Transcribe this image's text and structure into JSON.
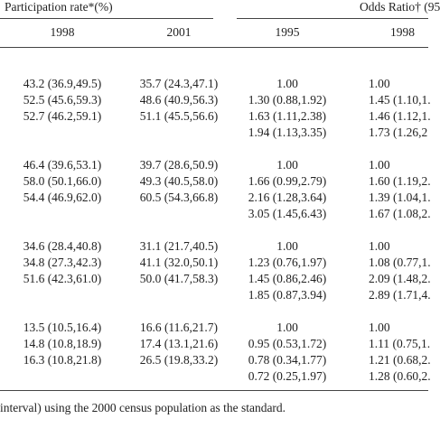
{
  "header": {
    "group_left": "Participation rate*(%)",
    "group_right": "Odds Ratio† (95",
    "columns": [
      "1998",
      "2001",
      "1995",
      "1998"
    ]
  },
  "groups": [
    {
      "columns": [
        [
          "43.2 (36.9,49.5)",
          "52.5 (45.6,59.3)",
          "52.7 (46.2,59.1)"
        ],
        [
          "35.7 (24.3,47.1)",
          "48.6 (40.9,56.3)",
          "51.1 (45.5,56.6)"
        ],
        [
          "1.00",
          "1.30 (0.88,1.92)",
          "1.63 (1.11,2.38)",
          "1.94 (1.13,3.35)"
        ],
        [
          "1.00",
          "1.45 (1.10,1.",
          "1.46 (1.12,1.",
          "1.73 (1.26,2"
        ]
      ]
    },
    {
      "columns": [
        [
          "46.4 (39.6,53.1)",
          "58.0 (50.1,66.0)",
          "54.4 (46.9,62.0)"
        ],
        [
          "39.7 (28.6,50.9)",
          "49.3 (40.5,58.0)",
          "60.5 (54.3,66.8)"
        ],
        [
          "1.00",
          "1.66 (0.99,2.79)",
          "2.16 (1.28,3.64)",
          "3.05 (1.45,6.43)"
        ],
        [
          "1.00",
          "1.60 (1.19,2.",
          "1.39 (1.04,1.",
          "1.67 (1.08,2."
        ]
      ]
    },
    {
      "columns": [
        [
          "34.6 (28.4,40.8)",
          "34.8 (27.3,42.3)",
          "51.6 (42.3,61.0)"
        ],
        [
          "31.1 (21.7,40.5)",
          "41.1 (32.0,50.1)",
          "50.0 (41.7,58.3)"
        ],
        [
          "1.00",
          "1.23 (0.76,1.97)",
          "1.45 (0.86,2.46)",
          "1.85 (0.87,3.94)"
        ],
        [
          "1.00",
          "1.08 (0.77,1.",
          "2.09 (1.48,2.",
          "2.89 (1.71,4."
        ]
      ]
    },
    {
      "columns": [
        [
          "13.5 (10.5,16.4)",
          "14.8 (10.8,18.9)",
          "16.3 (10.8,21.8)"
        ],
        [
          "16.6 (11.6,21.7)",
          "17.4 (13.1,21.6)",
          "26.5 (19.8,33.2)"
        ],
        [
          "1.00",
          "0.95 (0.53,1.72)",
          "0.78 (0.34,1.77)",
          "0.72 (0.25,1.97)"
        ],
        [
          "1.00",
          "1.11 (0.75,1.",
          "1.21 (0.68,2.",
          "1.28 (0.60,2."
        ]
      ]
    }
  ],
  "footer": "interval) using the 2000 census population as the standard."
}
